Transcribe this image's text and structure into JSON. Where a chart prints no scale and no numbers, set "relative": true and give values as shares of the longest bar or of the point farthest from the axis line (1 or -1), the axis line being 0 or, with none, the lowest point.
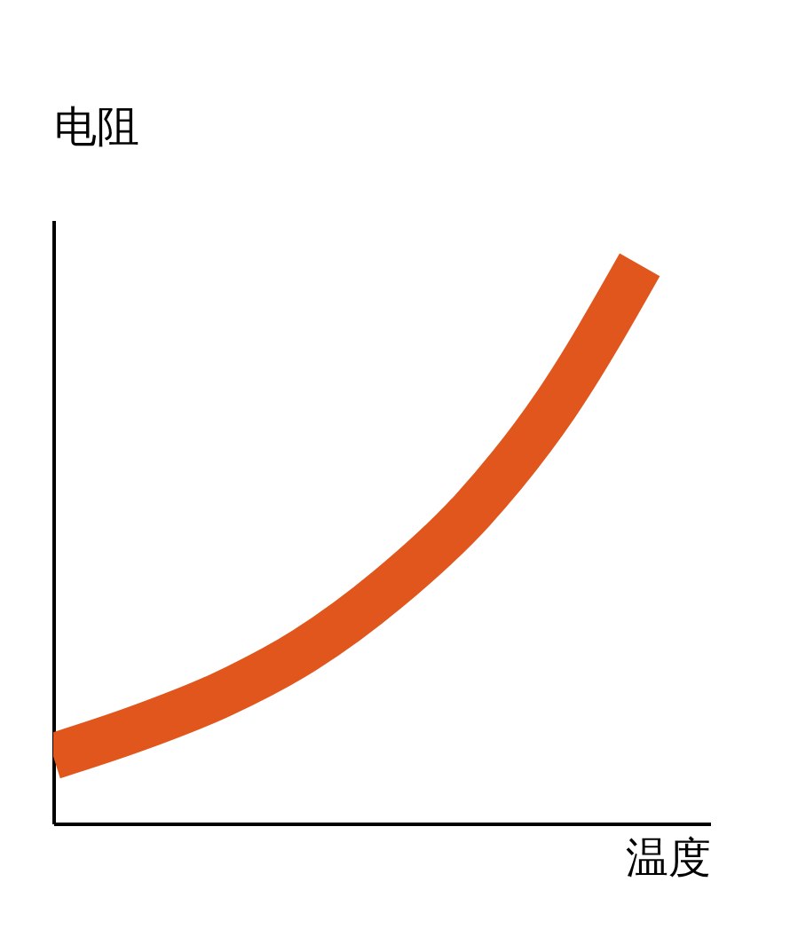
{
  "chart_data": {
    "type": "line",
    "relative": true,
    "xlabel": "温度",
    "ylabel": "电阻",
    "categories": [
      null,
      null,
      null,
      null,
      null,
      null,
      null,
      null
    ],
    "series": [
      {
        "color": "#e0561c",
        "values": [
          0.12,
          0.17,
          0.23,
          0.31,
          0.42,
          0.56,
          0.75,
          1.0
        ]
      }
    ],
    "tick_labels": false,
    "grid": false,
    "marker": "none",
    "line_style": "solid"
  }
}
